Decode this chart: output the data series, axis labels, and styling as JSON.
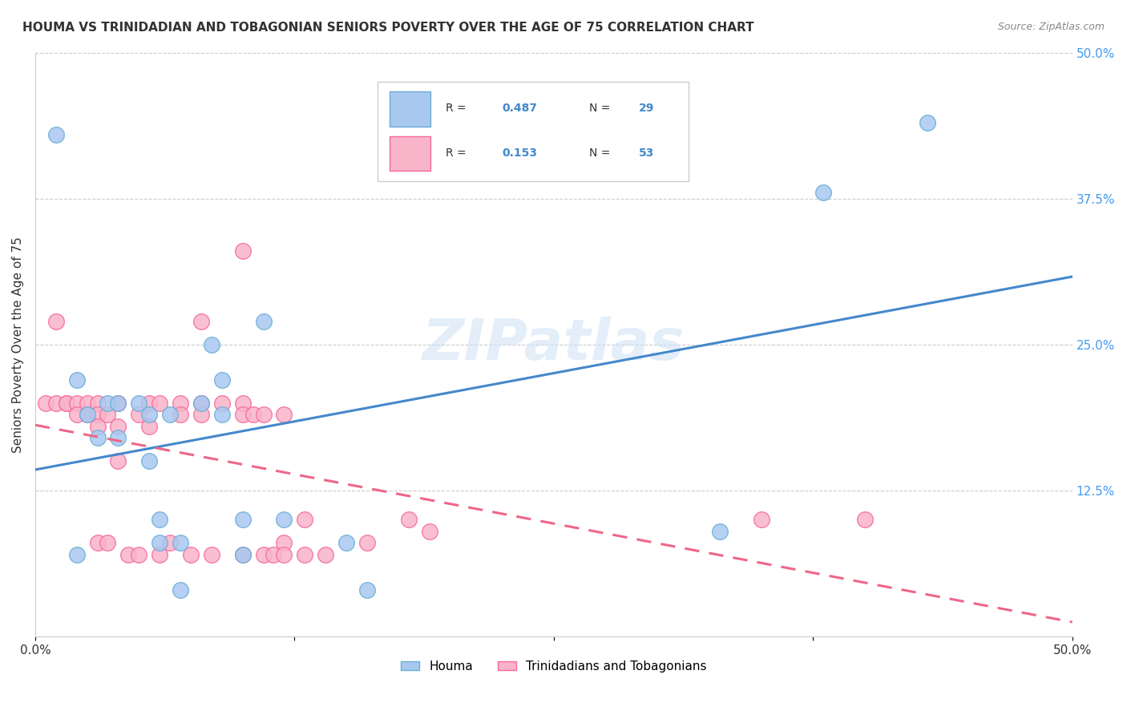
{
  "title": "HOUMA VS TRINIDADIAN AND TOBAGONIAN SENIORS POVERTY OVER THE AGE OF 75 CORRELATION CHART",
  "source": "Source: ZipAtlas.com",
  "ylabel": "Seniors Poverty Over the Age of 75",
  "xlim": [
    0,
    0.5
  ],
  "ylim": [
    0,
    0.5
  ],
  "ytick_right_labels": [
    "50.0%",
    "37.5%",
    "25.0%",
    "12.5%",
    ""
  ],
  "ytick_right_vals": [
    0.5,
    0.375,
    0.25,
    0.125,
    0.0
  ],
  "watermark": "ZIPatlas",
  "houma_color": "#a8c8f0",
  "houma_edge": "#6baed6",
  "trini_color": "#f8b4c8",
  "trini_edge": "#f768a1",
  "line_houma_color": "#4488cc",
  "line_trini_color": "#ee6688",
  "houma_x": [
    0.01,
    0.02,
    0.02,
    0.025,
    0.03,
    0.035,
    0.04,
    0.04,
    0.05,
    0.055,
    0.055,
    0.06,
    0.06,
    0.065,
    0.07,
    0.07,
    0.08,
    0.085,
    0.09,
    0.09,
    0.1,
    0.1,
    0.11,
    0.12,
    0.15,
    0.16,
    0.33,
    0.38,
    0.43
  ],
  "houma_y": [
    0.43,
    0.22,
    0.07,
    0.19,
    0.17,
    0.2,
    0.17,
    0.2,
    0.2,
    0.19,
    0.15,
    0.08,
    0.1,
    0.19,
    0.08,
    0.04,
    0.2,
    0.25,
    0.19,
    0.22,
    0.1,
    0.07,
    0.27,
    0.1,
    0.08,
    0.04,
    0.09,
    0.38,
    0.44
  ],
  "trini_x": [
    0.005,
    0.01,
    0.01,
    0.015,
    0.015,
    0.02,
    0.02,
    0.025,
    0.025,
    0.03,
    0.03,
    0.03,
    0.03,
    0.035,
    0.035,
    0.04,
    0.04,
    0.04,
    0.045,
    0.05,
    0.05,
    0.055,
    0.055,
    0.06,
    0.06,
    0.065,
    0.07,
    0.07,
    0.075,
    0.08,
    0.08,
    0.08,
    0.085,
    0.09,
    0.1,
    0.1,
    0.1,
    0.1,
    0.105,
    0.11,
    0.11,
    0.115,
    0.12,
    0.12,
    0.12,
    0.13,
    0.13,
    0.14,
    0.16,
    0.18,
    0.19,
    0.35,
    0.4
  ],
  "trini_y": [
    0.2,
    0.27,
    0.2,
    0.2,
    0.2,
    0.2,
    0.19,
    0.2,
    0.19,
    0.2,
    0.19,
    0.18,
    0.08,
    0.08,
    0.19,
    0.2,
    0.18,
    0.15,
    0.07,
    0.19,
    0.07,
    0.2,
    0.18,
    0.2,
    0.07,
    0.08,
    0.2,
    0.19,
    0.07,
    0.2,
    0.19,
    0.27,
    0.07,
    0.2,
    0.33,
    0.2,
    0.19,
    0.07,
    0.19,
    0.19,
    0.07,
    0.07,
    0.19,
    0.08,
    0.07,
    0.1,
    0.07,
    0.07,
    0.08,
    0.1,
    0.09,
    0.1,
    0.1
  ]
}
